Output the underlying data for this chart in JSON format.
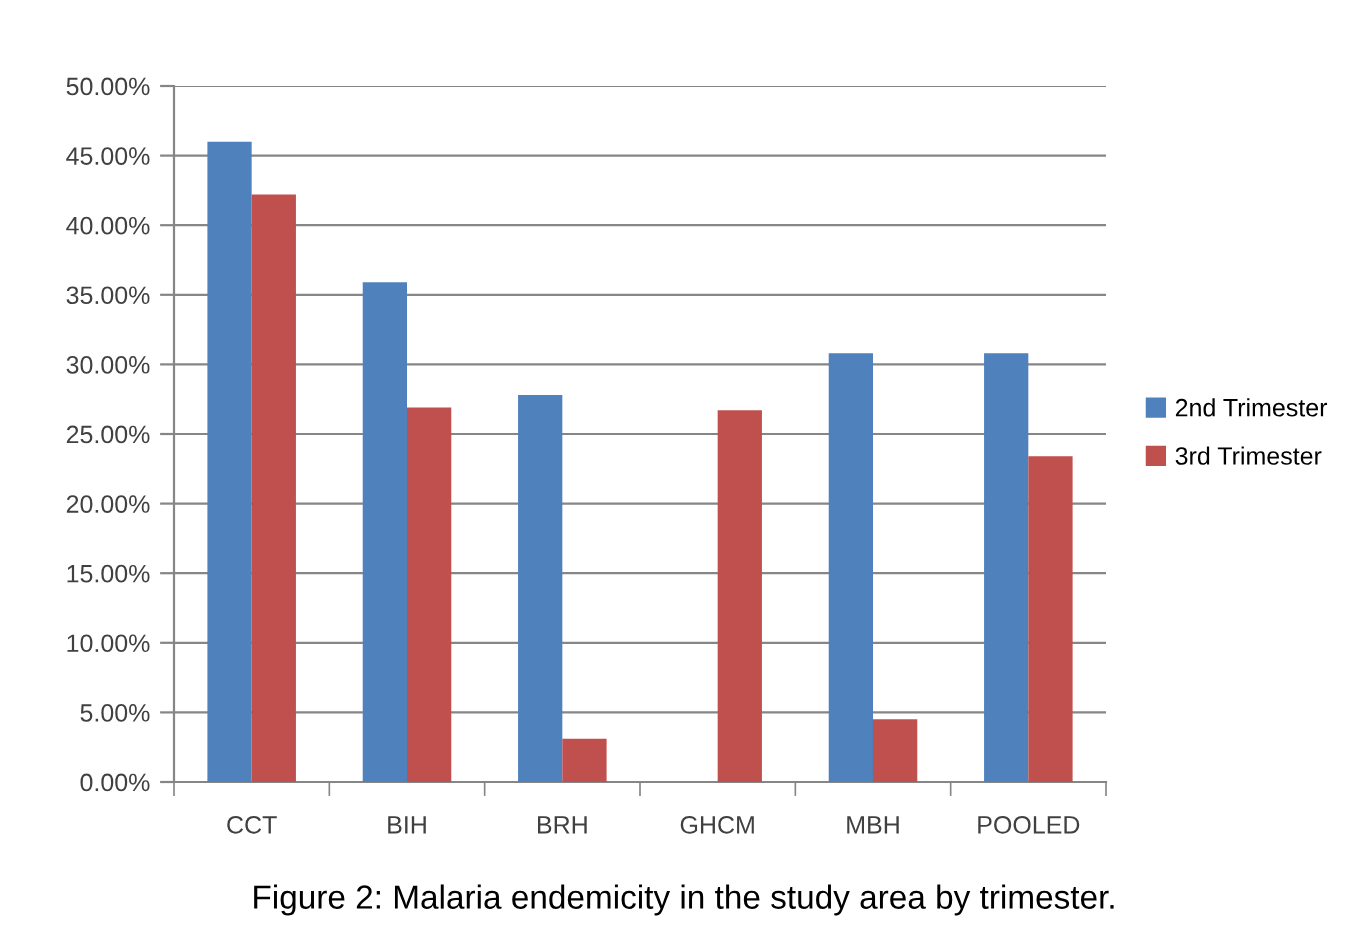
{
  "chart_data": {
    "type": "bar",
    "categories": [
      "CCT",
      "BIH",
      "BRH",
      "GHCM",
      "MBH",
      "POOLED"
    ],
    "series": [
      {
        "name": "2nd Trimester",
        "color": "#4f81bd",
        "values": [
          46.0,
          35.9,
          27.8,
          0,
          30.8,
          30.8
        ]
      },
      {
        "name": "3rd Trimester",
        "color": "#c0504d",
        "values": [
          42.2,
          26.9,
          3.1,
          26.7,
          4.5,
          23.4
        ]
      }
    ],
    "ylim": [
      0,
      50
    ],
    "yticks": [
      {
        "value": 0,
        "label": "0.00%"
      },
      {
        "value": 5,
        "label": "5.00%"
      },
      {
        "value": 10,
        "label": "10.00%"
      },
      {
        "value": 15,
        "label": "15.00%"
      },
      {
        "value": 20,
        "label": "20.00%"
      },
      {
        "value": 25,
        "label": "25.00%"
      },
      {
        "value": 30,
        "label": "30.00%"
      },
      {
        "value": 35,
        "label": "35.00%"
      },
      {
        "value": 40,
        "label": "40.00%"
      },
      {
        "value": 45,
        "label": "45.00%"
      },
      {
        "value": 50,
        "label": "50.00%"
      }
    ],
    "grid": "y",
    "legend": "right",
    "annotations": [
      "Figure 2: Malaria endemicity in the study area by trimester."
    ]
  }
}
